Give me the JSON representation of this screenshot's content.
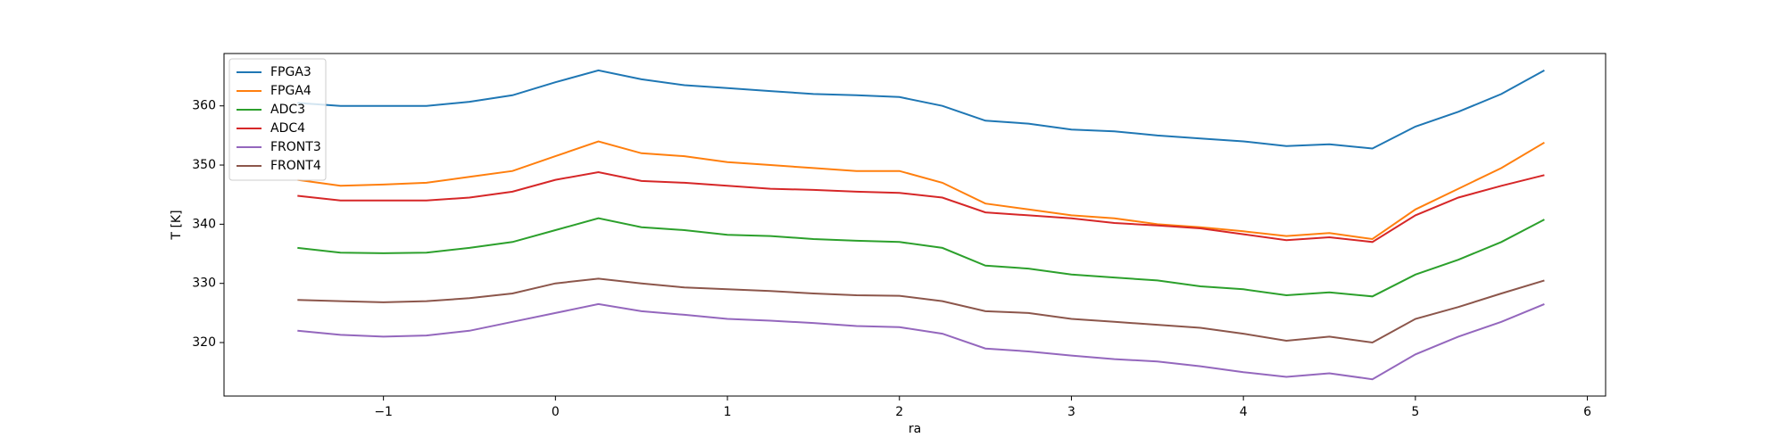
{
  "chart_data": {
    "type": "line",
    "xlabel": "ra",
    "ylabel": "T [K]",
    "x": [
      -1.5,
      -1.25,
      -1,
      -0.75,
      -0.5,
      -0.25,
      0,
      0.25,
      0.5,
      0.75,
      1,
      1.25,
      1.5,
      1.75,
      2,
      2.25,
      2.5,
      2.75,
      3,
      3.25,
      3.5,
      3.75,
      4,
      4.25,
      4.5,
      4.75,
      5,
      5.25,
      5.5,
      5.75
    ],
    "series": [
      {
        "name": "FPGA3",
        "color": "#1f77b4",
        "values": [
          360.5,
          360,
          360,
          360,
          360.7,
          361.8,
          364,
          366,
          364.5,
          363.5,
          363,
          362.5,
          362,
          361.8,
          361.5,
          360,
          357.5,
          357,
          356,
          355.7,
          355,
          354.5,
          354,
          353.2,
          353.5,
          352.8,
          356.5,
          359,
          362,
          366
        ]
      },
      {
        "name": "FPGA4",
        "color": "#ff7f0e",
        "values": [
          347.5,
          346.5,
          346.7,
          347,
          348,
          349,
          351.5,
          354,
          352,
          351.5,
          350.5,
          350,
          349.5,
          349,
          349,
          347,
          343.5,
          342.5,
          341.5,
          341,
          340,
          339.5,
          338.8,
          338,
          338.5,
          337.5,
          342.5,
          346,
          349.5,
          353.8
        ]
      },
      {
        "name": "ADC3",
        "color": "#2ca02c",
        "values": [
          336,
          335.2,
          335.1,
          335.2,
          336,
          337,
          339,
          341,
          339.5,
          339,
          338.2,
          338,
          337.5,
          337.2,
          337,
          336,
          333,
          332.5,
          331.5,
          331,
          330.5,
          329.5,
          329,
          328,
          328.5,
          327.8,
          331.5,
          334,
          337,
          340.8
        ]
      },
      {
        "name": "ADC4",
        "color": "#d62728",
        "values": [
          344.8,
          344,
          344,
          344,
          344.5,
          345.5,
          347.5,
          348.8,
          347.3,
          347,
          346.5,
          346,
          345.8,
          345.5,
          345.3,
          344.5,
          342,
          341.5,
          341,
          340.2,
          339.8,
          339.3,
          338.3,
          337.3,
          337.8,
          337,
          341.5,
          344.5,
          346.5,
          348.3
        ]
      },
      {
        "name": "FRONT3",
        "color": "#9467bd",
        "values": [
          322,
          321.3,
          321,
          321.2,
          322,
          323.5,
          325,
          326.5,
          325.3,
          324.7,
          324,
          323.7,
          323.3,
          322.8,
          322.6,
          321.5,
          319,
          318.5,
          317.8,
          317.2,
          316.8,
          316,
          315,
          314.2,
          314.8,
          313.8,
          318,
          321,
          323.5,
          326.5
        ]
      },
      {
        "name": "FRONT4",
        "color": "#8c564b",
        "values": [
          327.2,
          327,
          326.8,
          327,
          327.5,
          328.3,
          330,
          330.8,
          330,
          329.3,
          329,
          328.7,
          328.3,
          328,
          327.9,
          327,
          325.3,
          325,
          324,
          323.5,
          323,
          322.5,
          321.5,
          320.3,
          321,
          320,
          324,
          326,
          328.3,
          330.5
        ]
      }
    ],
    "xlim": [
      -1.927,
      6.106
    ],
    "xticks": [
      {
        "value": -1,
        "label": "−1"
      },
      0,
      1,
      2,
      3,
      4,
      5,
      6
    ],
    "ylim": [
      310.96,
      368.85
    ],
    "yticks": [
      320,
      330,
      340,
      350,
      360
    ],
    "legend": "upper left"
  }
}
